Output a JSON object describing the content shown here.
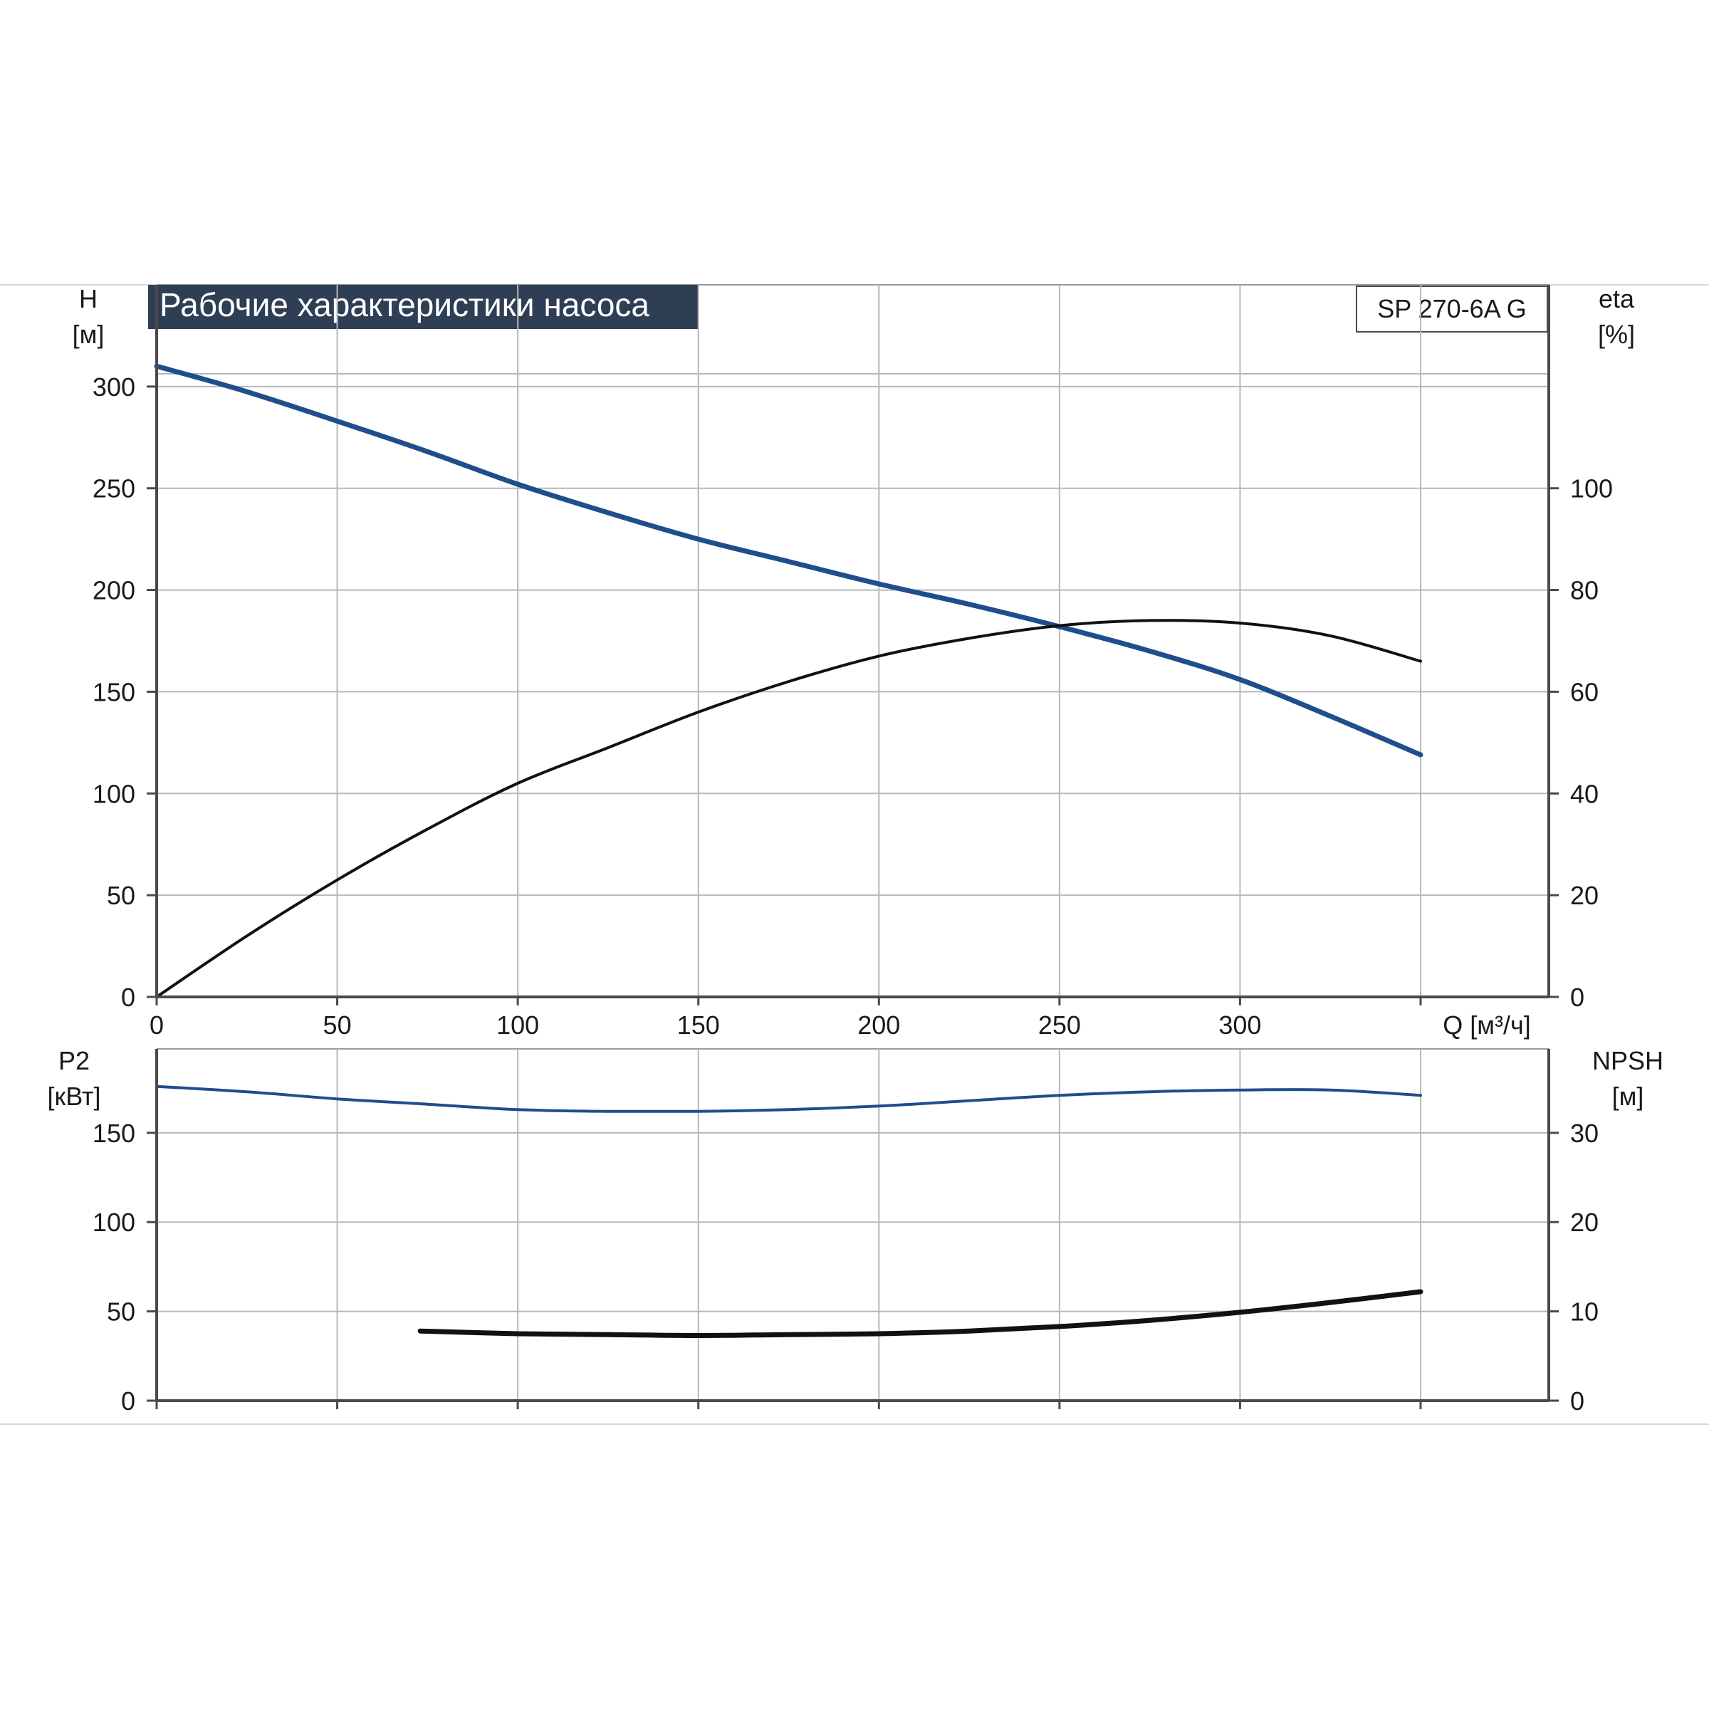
{
  "title": "Рабочие характеристики насоса",
  "model": "SP 270-6A G",
  "colors": {
    "blue": "#1f4e8c",
    "black": "#111111",
    "title_bg": "#2e3e55",
    "grid": "#b8b8b8"
  },
  "chart_data": [
    {
      "type": "line",
      "panel": "top",
      "xlabel": "Q [м³/ч]",
      "x_ticks": [
        "0",
        "50",
        "100",
        "150",
        "200",
        "250",
        "300"
      ],
      "xlim": [
        0,
        350
      ],
      "left_axis": {
        "label_line1": "H",
        "label_line2": "[м]",
        "ticks": [
          "0",
          "50",
          "100",
          "150",
          "200",
          "250",
          "300"
        ],
        "range": [
          0,
          350
        ]
      },
      "right_axis": {
        "label_line1": "eta",
        "label_line2": "[%]",
        "ticks": [
          "0",
          "20",
          "40",
          "60",
          "80",
          "100"
        ],
        "range": [
          0,
          140
        ]
      },
      "grid": true,
      "series": [
        {
          "axis": "left",
          "color": "#1f4e8c",
          "points": [
            [
              0,
              310
            ],
            [
              24,
              298
            ],
            [
              50,
              283
            ],
            [
              75,
              268
            ],
            [
              100,
              252
            ],
            [
              125,
              238
            ],
            [
              150,
              225
            ],
            [
              175,
              214
            ],
            [
              200,
              203
            ],
            [
              225,
              193
            ],
            [
              250,
              182
            ],
            [
              275,
              170
            ],
            [
              300,
              156
            ],
            [
              325,
              138
            ],
            [
              350,
              119
            ]
          ]
        },
        {
          "axis": "right",
          "color": "#111111",
          "points": [
            [
              0,
              0
            ],
            [
              25,
              12
            ],
            [
              50,
              23
            ],
            [
              75,
              33
            ],
            [
              100,
              42
            ],
            [
              125,
              49
            ],
            [
              150,
              56
            ],
            [
              175,
              62
            ],
            [
              200,
              67
            ],
            [
              225,
              70.5
            ],
            [
              250,
              73
            ],
            [
              275,
              74
            ],
            [
              300,
              73.5
            ],
            [
              325,
              71
            ],
            [
              350,
              66
            ]
          ]
        }
      ]
    },
    {
      "type": "line",
      "panel": "bottom",
      "x_ticks": [
        "0",
        "50",
        "100",
        "150",
        "200",
        "250",
        "300"
      ],
      "xlim": [
        0,
        350
      ],
      "left_axis": {
        "label_line1": "P2",
        "label_line2": "[кВт]",
        "ticks": [
          "0",
          "50",
          "100",
          "150"
        ],
        "range": [
          0,
          197
        ]
      },
      "right_axis": {
        "label_line1": "NPSH",
        "label_line2": "[м]",
        "ticks": [
          "0",
          "10",
          "20",
          "30"
        ],
        "range": [
          0,
          39.4
        ]
      },
      "grid": true,
      "series": [
        {
          "axis": "left",
          "color": "#1f4e8c",
          "points": [
            [
              0,
              176
            ],
            [
              25,
              173
            ],
            [
              50,
              169
            ],
            [
              75,
              166
            ],
            [
              100,
              163
            ],
            [
              125,
              162
            ],
            [
              150,
              162
            ],
            [
              175,
              163
            ],
            [
              200,
              165
            ],
            [
              225,
              168
            ],
            [
              250,
              171
            ],
            [
              275,
              173
            ],
            [
              300,
              174
            ],
            [
              325,
              174
            ],
            [
              350,
              171
            ]
          ]
        },
        {
          "axis": "right",
          "color": "#111111",
          "points": [
            [
              73,
              7.8
            ],
            [
              100,
              7.5
            ],
            [
              125,
              7.4
            ],
            [
              150,
              7.3
            ],
            [
              175,
              7.4
            ],
            [
              200,
              7.5
            ],
            [
              225,
              7.8
            ],
            [
              250,
              8.3
            ],
            [
              275,
              9.0
            ],
            [
              300,
              9.9
            ],
            [
              325,
              11.0
            ],
            [
              350,
              12.2
            ]
          ]
        }
      ]
    }
  ]
}
